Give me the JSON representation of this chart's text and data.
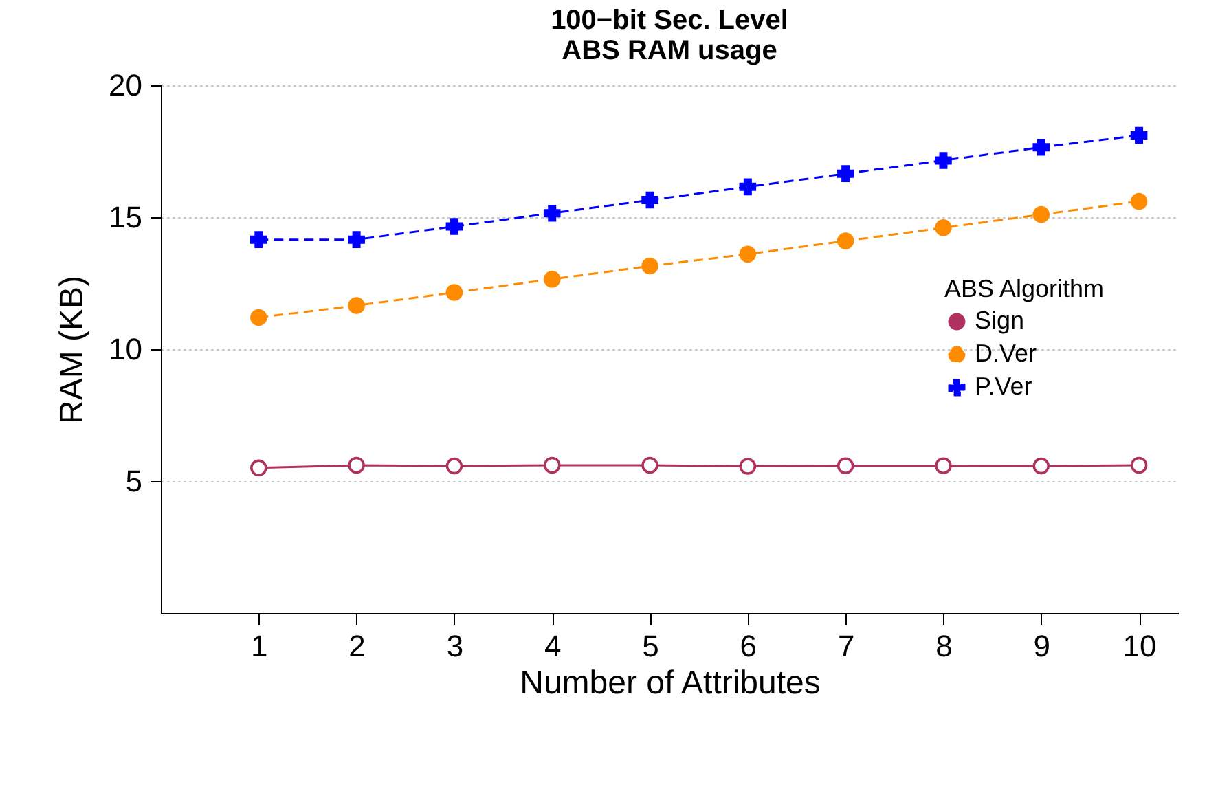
{
  "chart_data": {
    "type": "line",
    "title": [
      "100−bit Sec. Level",
      "ABS RAM usage"
    ],
    "xlabel": "Number of Attributes",
    "ylabel": "RAM (KB)",
    "legend_title": "ABS Algorithm",
    "x": [
      1,
      2,
      3,
      4,
      5,
      6,
      7,
      8,
      9,
      10
    ],
    "series": [
      {
        "name": "Sign",
        "color": "#b03060",
        "marker": "circle",
        "line_style": "solid",
        "values": [
          5.5,
          5.6,
          5.57,
          5.6,
          5.6,
          5.56,
          5.58,
          5.58,
          5.57,
          5.6
        ]
      },
      {
        "name": "D.Ver",
        "color": "#ff8c00",
        "marker": "circle",
        "line_style": "dashed",
        "values": [
          11.2,
          11.65,
          12.15,
          12.65,
          13.15,
          13.6,
          14.1,
          14.6,
          15.1,
          15.6
        ]
      },
      {
        "name": "P.Ver",
        "color": "#0000ff",
        "marker": "cross",
        "line_style": "dashed",
        "values": [
          14.15,
          14.15,
          14.65,
          15.15,
          15.65,
          16.15,
          16.65,
          17.15,
          17.65,
          18.1
        ]
      }
    ],
    "xlim": [
      0,
      10.4
    ],
    "xticks": [
      1,
      2,
      3,
      4,
      5,
      6,
      7,
      8,
      9,
      10
    ],
    "ylim": [
      0,
      20
    ],
    "yticks": [
      5,
      10,
      15,
      20
    ],
    "grid": "y",
    "legend": "right"
  }
}
